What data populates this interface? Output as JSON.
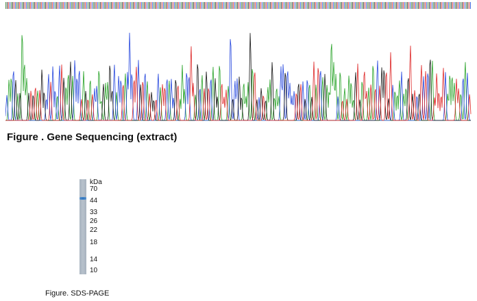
{
  "sequencing": {
    "caption": "Figure . Gene Sequencing (extract)",
    "trace_colors": {
      "A": "#22a022",
      "C": "#2244dd",
      "G": "#111111",
      "T": "#dd2222"
    }
  },
  "sds_page": {
    "unit": "kDa",
    "markers": [
      "70",
      "44",
      "33",
      "26",
      "22",
      "18",
      "14",
      "10"
    ],
    "band_color": "#2a6fb8",
    "caption": "Figure. SDS-PAGE"
  }
}
